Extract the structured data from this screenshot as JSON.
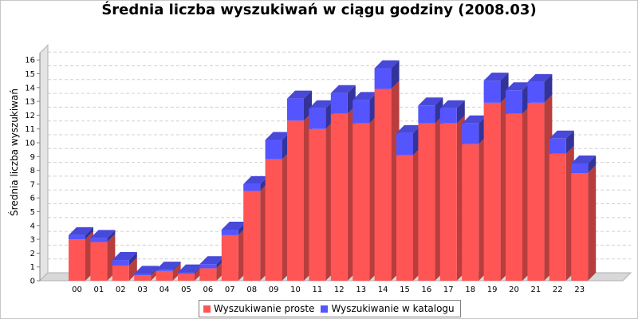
{
  "chart_data": {
    "type": "bar",
    "stacked": true,
    "render_3d": true,
    "title": "Średnia liczba wyszukiwań w ciągu godziny (2008.03)",
    "xlabel": "",
    "ylabel": "Średnia liczba wyszukiwań",
    "ylim": [
      0,
      16.5
    ],
    "yticks": [
      0,
      1,
      2,
      3,
      4,
      5,
      6,
      7,
      8,
      9,
      10,
      11,
      12,
      13,
      14,
      15,
      16
    ],
    "grid": true,
    "legend_position": "bottom",
    "categories": [
      "00",
      "01",
      "02",
      "03",
      "04",
      "05",
      "06",
      "07",
      "08",
      "09",
      "10",
      "11",
      "12",
      "13",
      "14",
      "15",
      "16",
      "17",
      "18",
      "19",
      "20",
      "21",
      "22",
      "23"
    ],
    "series": [
      {
        "name": "Wyszukiwanie proste",
        "color": "#ff5555",
        "values": [
          3.0,
          2.8,
          1.1,
          0.4,
          0.7,
          0.5,
          0.9,
          3.3,
          6.5,
          8.8,
          11.6,
          11.0,
          12.1,
          11.4,
          13.9,
          9.1,
          11.4,
          11.4,
          9.9,
          12.9,
          12.1,
          12.9,
          9.2,
          7.8
        ]
      },
      {
        "name": "Wyszukiwanie w katalogu",
        "color": "#5555ff",
        "values": [
          0.3,
          0.3,
          0.4,
          0.1,
          0.1,
          0.1,
          0.3,
          0.4,
          0.5,
          1.4,
          1.6,
          1.5,
          1.5,
          1.7,
          1.5,
          1.6,
          1.3,
          1.1,
          1.5,
          1.6,
          1.7,
          1.5,
          1.1,
          0.7
        ]
      }
    ]
  }
}
